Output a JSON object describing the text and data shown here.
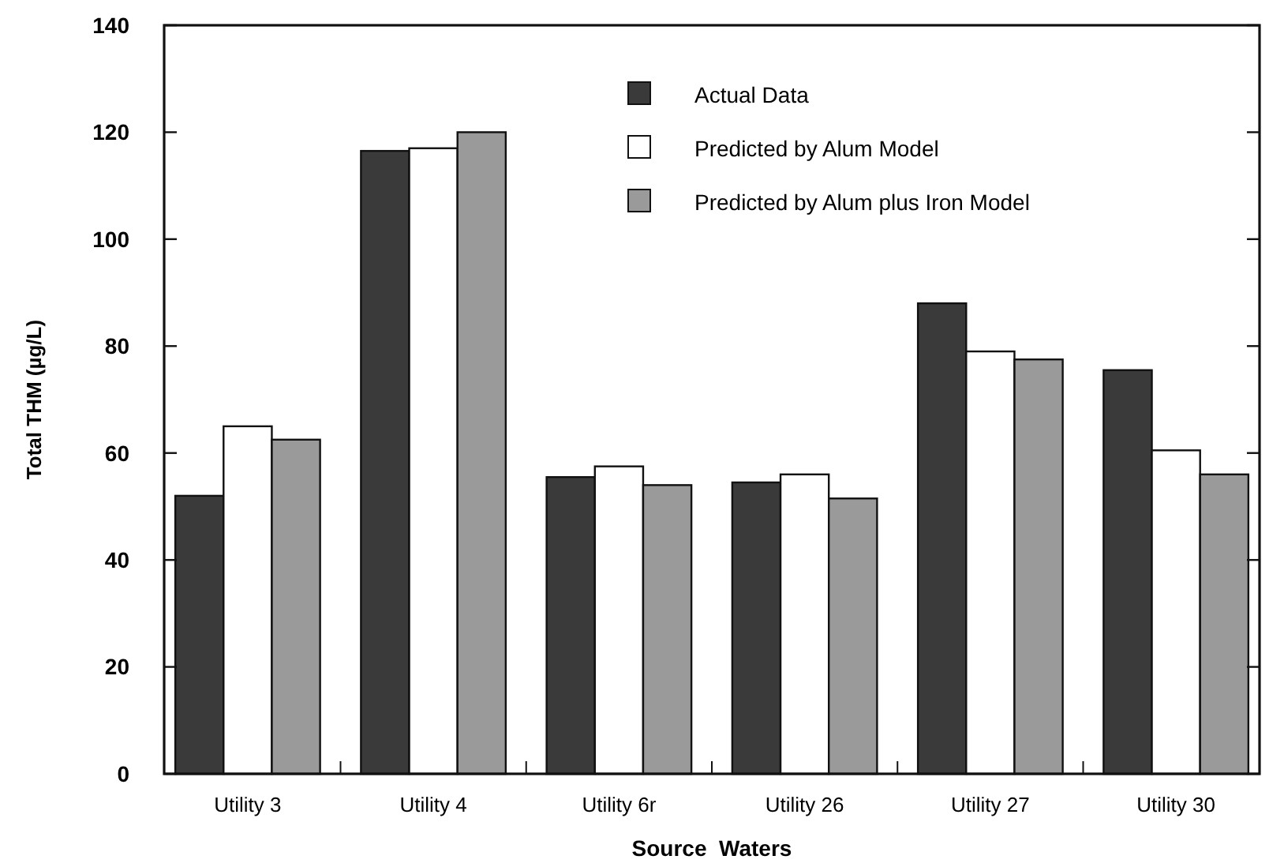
{
  "chart_data": {
    "type": "bar",
    "xlabel": "Source  Waters",
    "ylabel": "Total THM (µg/L)",
    "categories": [
      "Utility 3",
      "Utility 4",
      "Utility 6r",
      "Utility 26",
      "Utility 27",
      "Utility 30"
    ],
    "series": [
      {
        "name": "Actual Data",
        "color": "#3a3a3a",
        "values": [
          52,
          116.5,
          55.5,
          54.5,
          88,
          75.5
        ]
      },
      {
        "name": "Predicted by Alum Model",
        "color": "#ffffff",
        "values": [
          65,
          117,
          57.5,
          56,
          79,
          60.5
        ]
      },
      {
        "name": "Predicted by Alum plus Iron Model",
        "color": "#9a9a9a",
        "values": [
          62.5,
          120,
          54,
          51.5,
          77.5,
          56
        ]
      }
    ],
    "ylim": [
      0,
      140
    ],
    "yticks": [
      0,
      20,
      40,
      60,
      80,
      100,
      120,
      140
    ],
    "grid": false,
    "legend": "top right"
  }
}
